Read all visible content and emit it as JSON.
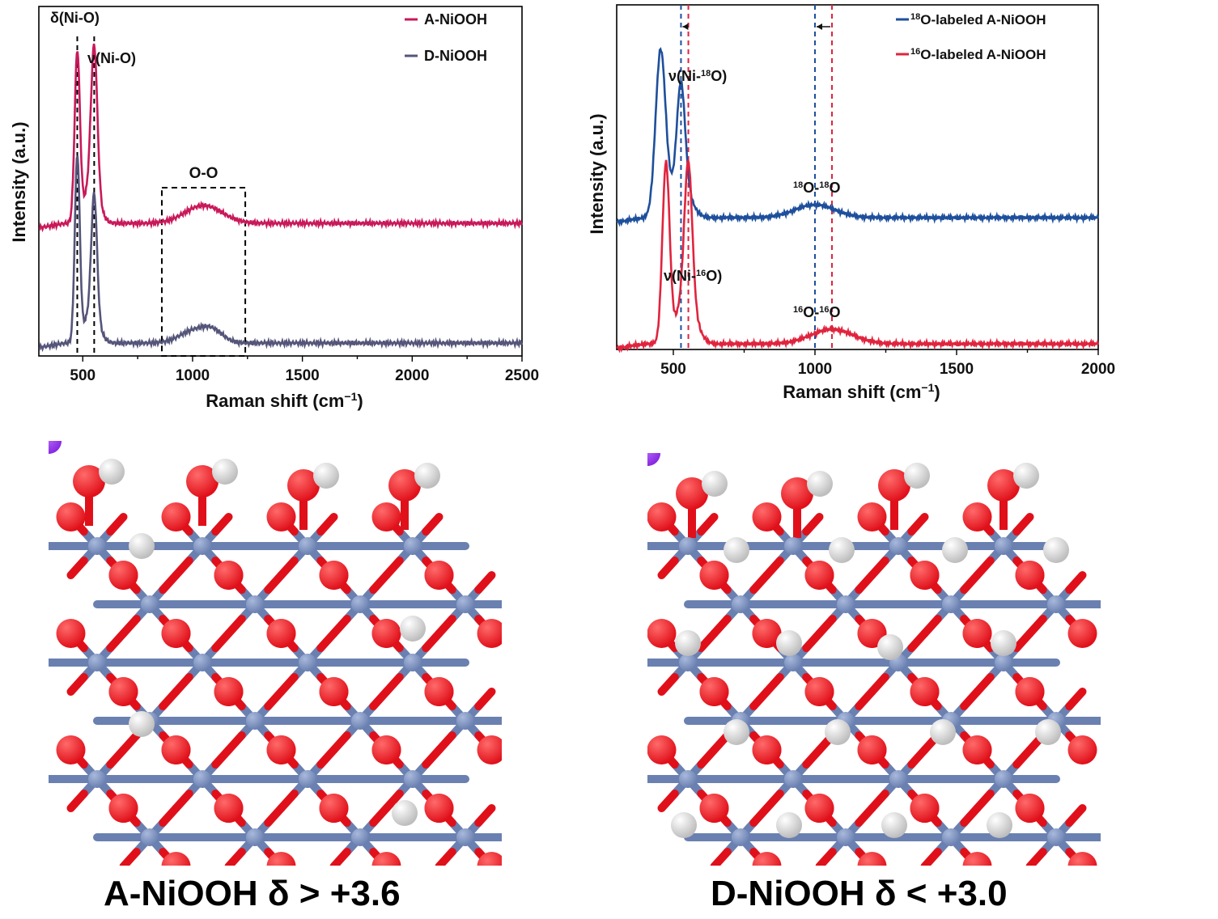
{
  "colors": {
    "crimson": "#c8195a",
    "slate": "#55557a",
    "blue": "#1e4f9c",
    "red": "#e0243e",
    "oxygen": "#e0101a",
    "nickel": "#6a80b0",
    "hydrogen": "#ececec",
    "adsorbate": "#8a2be2"
  },
  "chart_data": [
    {
      "type": "line",
      "id": "raman-a-vs-d",
      "xlabel": "Raman shift (cm",
      "xlabel_sup": "−1",
      "xlabel_end": ")",
      "ylabel": "Intensity (a.u.)",
      "xlim": [
        300,
        2500
      ],
      "xticks": [
        500,
        1000,
        1500,
        2000,
        2500
      ],
      "xtick_labels": [
        "500",
        "1000",
        "1500",
        "2000",
        "2500"
      ],
      "legend_placement": "top-right",
      "series": [
        {
          "name": "A-NiOOH",
          "color": "#c8195a",
          "baseline": 0.37,
          "peaks": [
            [
              475,
              0.52,
              17
            ],
            [
              552,
              0.44,
              20
            ],
            [
              540,
              0.12,
              45
            ],
            [
              1050,
              0.055,
              120
            ]
          ]
        },
        {
          "name": "D-NiOOH",
          "color": "#55557a",
          "baseline": 0.0,
          "peaks": [
            [
              475,
              0.57,
              16
            ],
            [
              552,
              0.37,
              18
            ],
            [
              540,
              0.1,
              45
            ],
            [
              1000,
              0.035,
              90
            ],
            [
              1090,
              0.035,
              70
            ]
          ]
        }
      ],
      "reference_lines": [
        475,
        552
      ],
      "box": {
        "x": [
          860,
          1240
        ],
        "label": "O-O"
      },
      "annotations": [
        {
          "text": "δ(Ni-O)",
          "x": 320,
          "y": 1.05
        },
        {
          "text": "ν(Ni-O)",
          "x": 540,
          "y": 0.94
        }
      ]
    },
    {
      "type": "line",
      "id": "raman-isotope",
      "xlabel": "Raman shift (cm",
      "xlabel_sup": "−1",
      "xlabel_end": ")",
      "ylabel": "Intensity (a.u.)",
      "xlim": [
        300,
        2000
      ],
      "xticks": [
        500,
        1000,
        1500,
        2000
      ],
      "xtick_labels": [
        "500",
        "1000",
        "1500",
        "2000"
      ],
      "legend_placement": "top-right",
      "series": [
        {
          "name": "18O-labeled A-NiOOH",
          "sup": "18",
          "label": "O-labeled A-NiOOH",
          "color": "#1e4f9c",
          "baseline": 0.39,
          "peaks": [
            [
              455,
              0.51,
              25
            ],
            [
              527,
              0.3,
              20
            ],
            [
              525,
              0.12,
              45
            ],
            [
              1000,
              0.04,
              100
            ]
          ]
        },
        {
          "name": "16O-labeled A-NiOOH",
          "sup": "16",
          "label": "O-labeled A-NiOOH",
          "color": "#e0243e",
          "baseline": 0.0,
          "peaks": [
            [
              474,
              0.55,
              18
            ],
            [
              553,
              0.42,
              19
            ],
            [
              545,
              0.15,
              45
            ],
            [
              1060,
              0.045,
              105
            ]
          ]
        }
      ],
      "reference_lines": [
        {
          "x": 527,
          "color": "#1e4f9c"
        },
        {
          "x": 553,
          "color": "#e0243e"
        },
        {
          "x": 1000,
          "color": "#1e4f9c"
        },
        {
          "x": 1060,
          "color": "#e0243e"
        }
      ],
      "arrows": [
        [
          553,
          527
        ],
        [
          1060,
          1000
        ]
      ],
      "annotations": [
        {
          "parts": [
            "ν(Ni-",
            "18",
            "O)"
          ],
          "x": 520,
          "y": 0.88
        },
        {
          "parts": [
            "18",
            "O-",
            "18",
            "O"
          ],
          "x": 920,
          "y": 0.51
        },
        {
          "parts": [
            "ν(Ni-",
            "16",
            "O)"
          ],
          "x": 500,
          "y": 0.2
        },
        {
          "parts": [
            "16",
            "O-",
            "16",
            "O"
          ],
          "x": 920,
          "y": 0.1
        }
      ]
    }
  ],
  "structures": {
    "a": {
      "label": "A-NiOOH  δ > +3.6"
    },
    "d": {
      "label": "D-NiOOH  δ < +3.0"
    }
  }
}
